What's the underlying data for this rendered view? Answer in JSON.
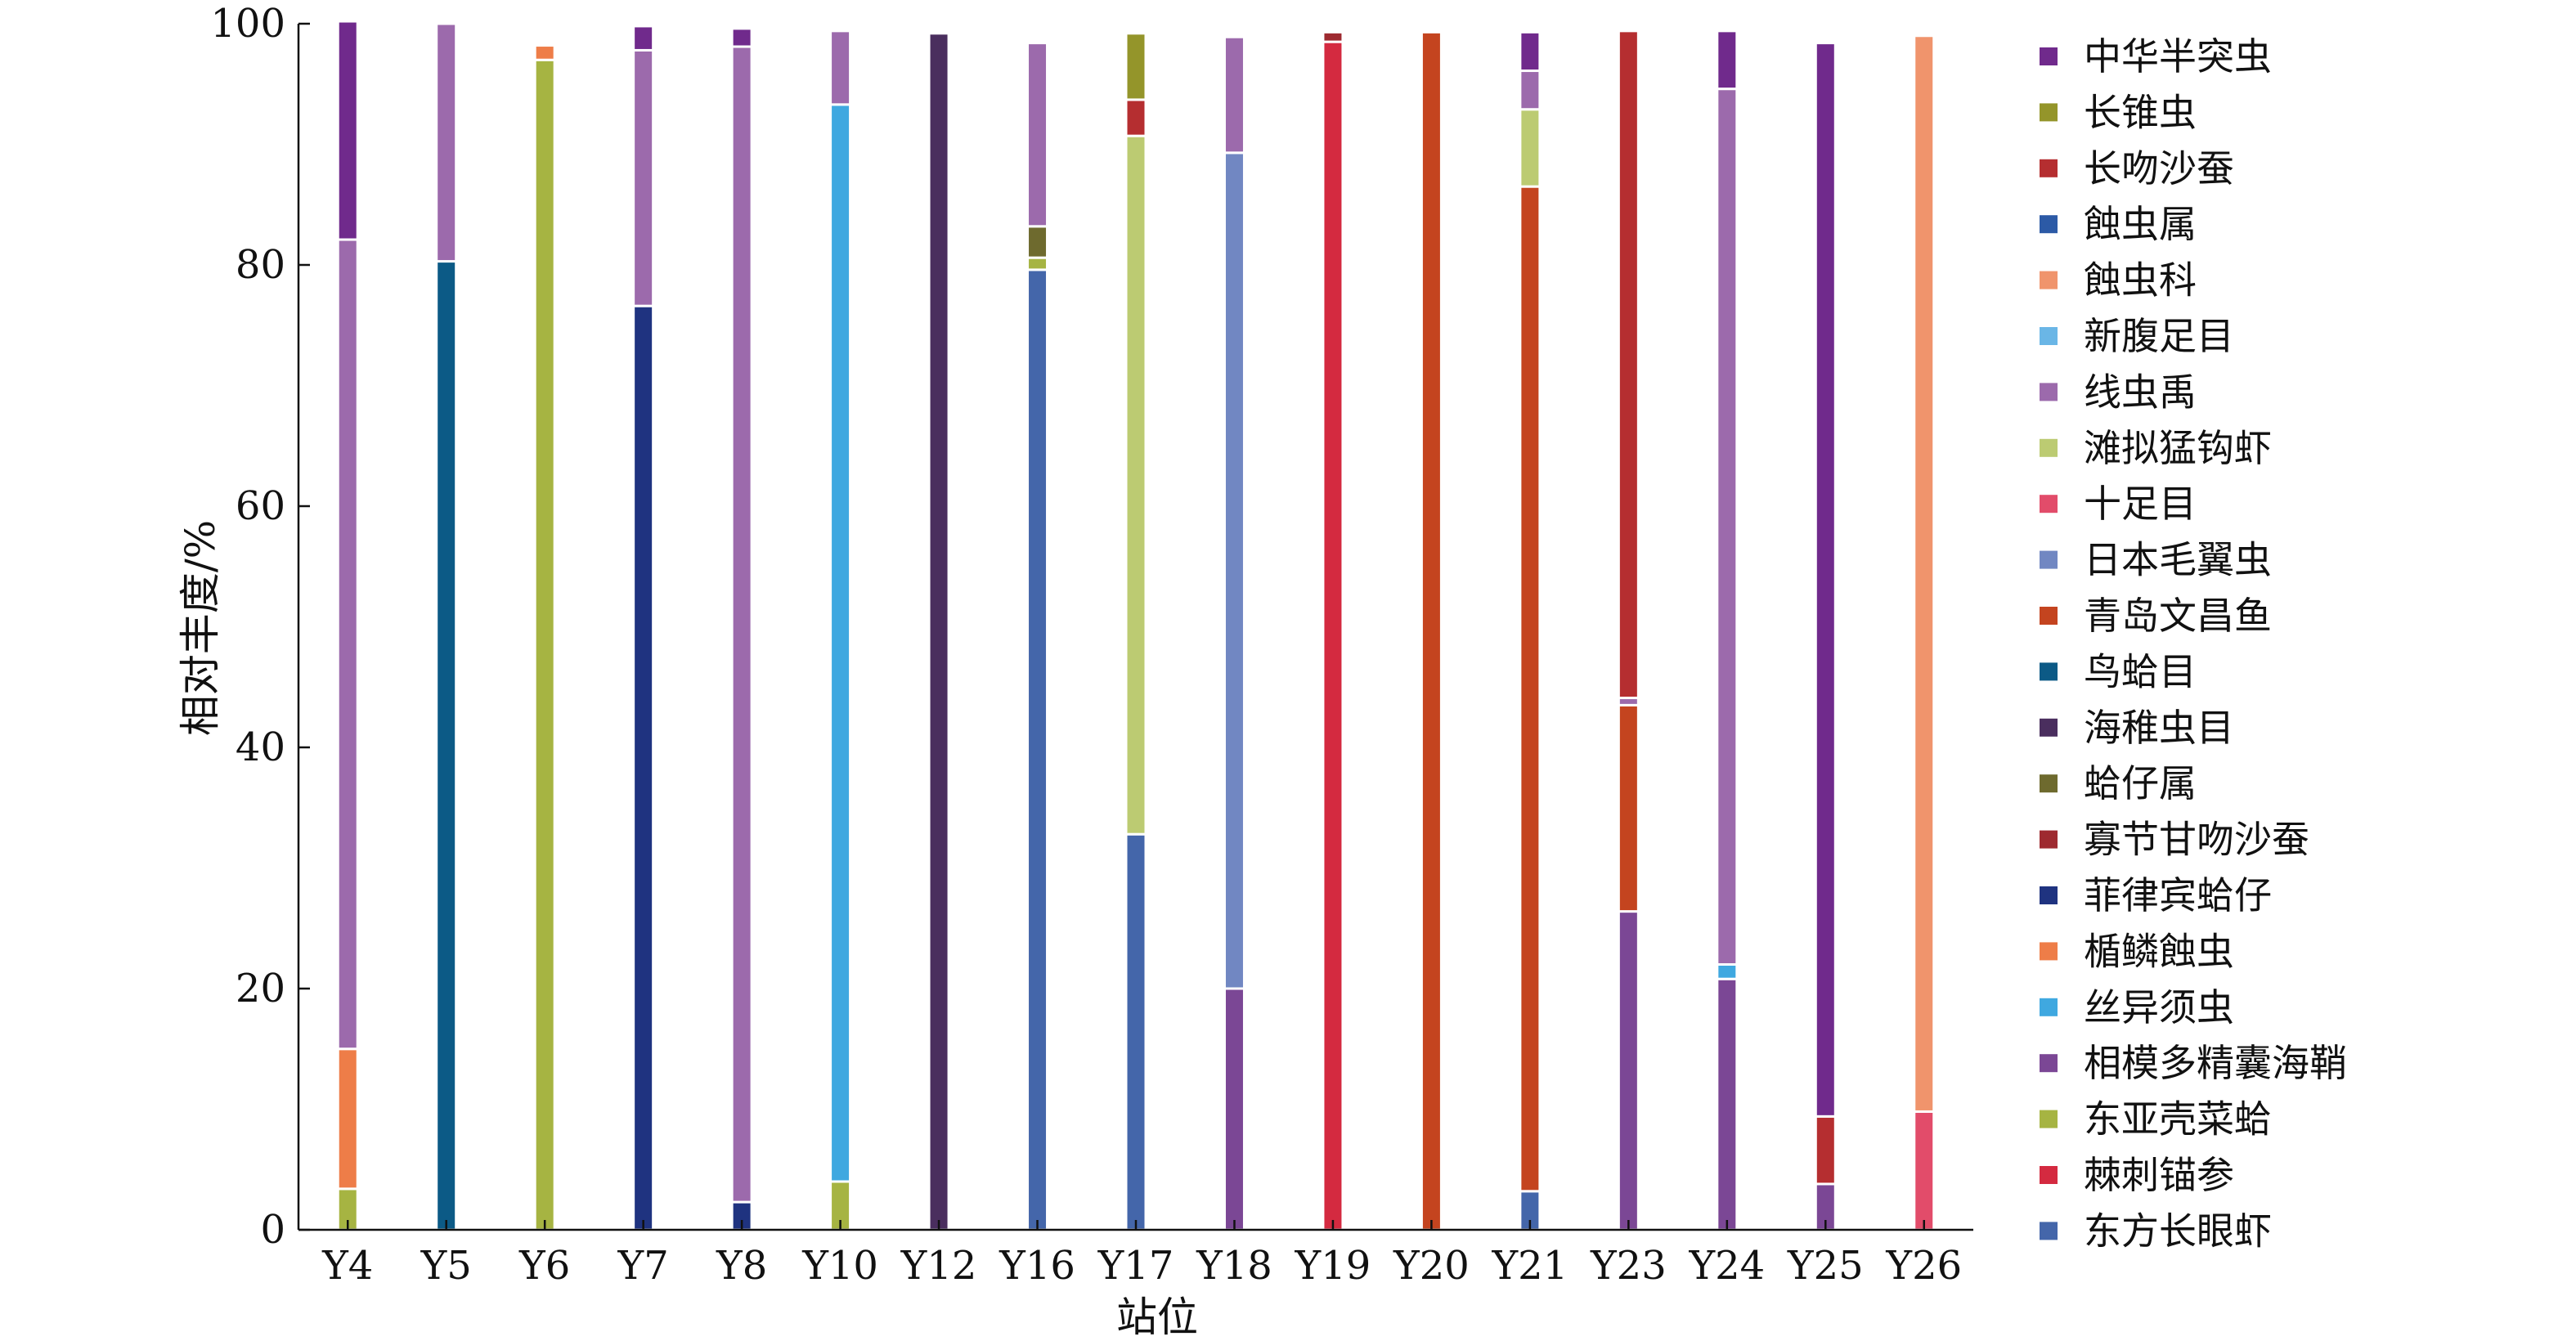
{
  "chart_data": {
    "type": "bar",
    "stacked": true,
    "xlabel": "站位",
    "ylabel": "相对丰度/%",
    "ylim": [
      0,
      100
    ],
    "yticks": [
      0,
      20,
      40,
      60,
      80,
      100
    ],
    "grid": false,
    "legend_position": "right",
    "categories": [
      "Y4",
      "Y5",
      "Y6",
      "Y7",
      "Y8",
      "Y10",
      "Y12",
      "Y16",
      "Y17",
      "Y18",
      "Y19",
      "Y20",
      "Y21",
      "Y23",
      "Y24",
      "Y25",
      "Y26"
    ],
    "series": [
      {
        "name": "东方长眼虾",
        "color": "#4466aa",
        "values": [
          0,
          0,
          0,
          0,
          0,
          0,
          0,
          79.6,
          32.8,
          0,
          0,
          0,
          3.2,
          0,
          0,
          0,
          0
        ]
      },
      {
        "name": "棘刺锚参",
        "color": "#d42a40",
        "values": [
          0,
          0,
          0,
          0,
          0,
          0,
          0,
          0,
          0,
          0,
          98.5,
          0,
          0,
          0,
          0,
          0,
          0
        ]
      },
      {
        "name": "东亚壳菜蛤",
        "color": "#a6b442",
        "values": [
          3.4,
          0,
          97.0,
          0,
          0,
          4.0,
          0,
          1.0,
          0,
          0,
          0,
          0,
          0,
          0,
          0,
          0,
          0
        ]
      },
      {
        "name": "相模多精囊海鞘",
        "color": "#7b4795",
        "values": [
          0,
          0,
          0,
          0,
          0,
          0,
          0,
          0,
          0,
          20.0,
          0,
          0,
          0,
          26.4,
          20.8,
          3.8,
          0
        ]
      },
      {
        "name": "丝异须虫",
        "color": "#3fa8e0",
        "values": [
          0,
          0,
          0,
          0,
          0,
          89.3,
          0,
          0,
          0,
          0,
          0,
          0,
          0,
          0,
          1.2,
          0,
          0
        ]
      },
      {
        "name": "楯鳞蝕虫",
        "color": "#ee7d48",
        "values": [
          11.6,
          0,
          1.2,
          0,
          0,
          0,
          0,
          0,
          0,
          0,
          0,
          0,
          0,
          0,
          0,
          0,
          0
        ]
      },
      {
        "name": "菲律宾蛤仔",
        "color": "#1f3380",
        "values": [
          0,
          0,
          0,
          76.6,
          2.3,
          0,
          0,
          0,
          0,
          0,
          0,
          0,
          0,
          0,
          0,
          0,
          0
        ]
      },
      {
        "name": "寡节甘吻沙蚕",
        "color": "#9e2a30",
        "values": [
          0,
          0,
          0,
          0,
          0,
          0,
          0,
          0,
          0,
          0,
          0.8,
          0,
          0,
          0,
          0,
          0,
          0
        ]
      },
      {
        "name": "蛤仔属",
        "color": "#6e6a2e",
        "values": [
          0,
          0,
          0,
          0,
          0,
          0,
          0,
          2.6,
          0,
          0,
          0,
          0,
          0,
          0,
          0,
          0,
          0
        ]
      },
      {
        "name": "海稚虫目",
        "color": "#4a2e5e",
        "values": [
          0,
          0,
          0,
          0,
          0,
          0,
          99.2,
          0,
          0,
          0,
          0,
          0,
          0,
          0,
          0,
          0,
          0
        ]
      },
      {
        "name": "鸟蛤目",
        "color": "#0c5a86",
        "values": [
          0,
          80.3,
          0,
          0,
          0,
          0,
          0,
          0,
          0,
          0,
          0,
          0,
          0,
          0,
          0,
          0,
          0
        ]
      },
      {
        "name": "青岛文昌鱼",
        "color": "#c4441f",
        "values": [
          0,
          0,
          0,
          0,
          0,
          0,
          0,
          0,
          0,
          0,
          0,
          99.3,
          83.3,
          17.1,
          0,
          0,
          0
        ]
      },
      {
        "name": "日本毛翼虫",
        "color": "#7187c2",
        "values": [
          0,
          0,
          0,
          0,
          0,
          0,
          0,
          0,
          0,
          69.3,
          0,
          0,
          0,
          0,
          0,
          0,
          0
        ]
      },
      {
        "name": "十足目",
        "color": "#e24c6a",
        "values": [
          0,
          0,
          0,
          0,
          0,
          0,
          0,
          0,
          0,
          0,
          0,
          0,
          0,
          0,
          0,
          0,
          9.8
        ]
      },
      {
        "name": "滩拟猛钩虾",
        "color": "#bccb72",
        "values": [
          0,
          0,
          0,
          0,
          0,
          0,
          0,
          0,
          57.9,
          0,
          0,
          0,
          6.4,
          0,
          0,
          0,
          0
        ]
      },
      {
        "name": "线虫禹",
        "color": "#9c6aac",
        "values": [
          67.1,
          19.7,
          0,
          21.2,
          95.8,
          6.1,
          0,
          15.2,
          0,
          9.6,
          0,
          0,
          3.2,
          0.6,
          72.6,
          0,
          0
        ]
      },
      {
        "name": "新腹足目",
        "color": "#6ab6e6",
        "values": [
          0,
          0,
          0,
          0,
          0,
          0,
          0,
          0,
          0,
          0,
          0,
          0,
          0,
          0,
          0,
          0,
          0
        ]
      },
      {
        "name": "蝕虫科",
        "color": "#f0946c",
        "values": [
          0,
          0,
          0,
          0,
          0,
          0,
          0,
          0,
          0,
          0,
          0,
          0,
          0,
          0,
          0,
          0,
          89.2
        ]
      },
      {
        "name": "蝕虫属",
        "color": "#2c5aa6",
        "values": [
          0,
          0,
          0,
          0,
          0,
          0,
          0,
          0,
          0,
          0,
          0,
          0,
          0,
          0,
          0,
          0,
          0
        ]
      },
      {
        "name": "长吻沙蚕",
        "color": "#b52e30",
        "values": [
          0,
          0,
          0,
          0,
          0,
          0,
          0,
          0,
          3.0,
          0,
          0,
          0,
          0,
          55.3,
          0,
          5.6,
          0
        ]
      },
      {
        "name": "长锥虫",
        "color": "#94952a",
        "values": [
          0,
          0,
          0,
          0,
          0,
          0,
          0,
          0,
          5.5,
          0,
          0,
          0,
          0,
          0,
          0,
          0,
          0
        ]
      },
      {
        "name": "中华半突虫",
        "color": "#702a8c",
        "values": [
          18.1,
          0,
          0,
          2.0,
          1.5,
          0,
          0,
          0,
          0,
          0,
          0,
          0,
          3.2,
          0,
          4.8,
          89.0,
          0
        ]
      }
    ],
    "legend": [
      "中华半突虫",
      "长锥虫",
      "长吻沙蚕",
      "蝕虫属",
      "蝕虫科",
      "新腹足目",
      "线虫禹",
      "滩拟猛钩虾",
      "十足目",
      "日本毛翼虫",
      "青岛文昌鱼",
      "鸟蛤目",
      "海稚虫目",
      "蛤仔属",
      "寡节甘吻沙蚕",
      "菲律宾蛤仔",
      "楯鳞蝕虫",
      "丝异须虫",
      "相模多精囊海鞘",
      "东亚壳菜蛤",
      "棘刺锚参",
      "东方长眼虾"
    ]
  }
}
